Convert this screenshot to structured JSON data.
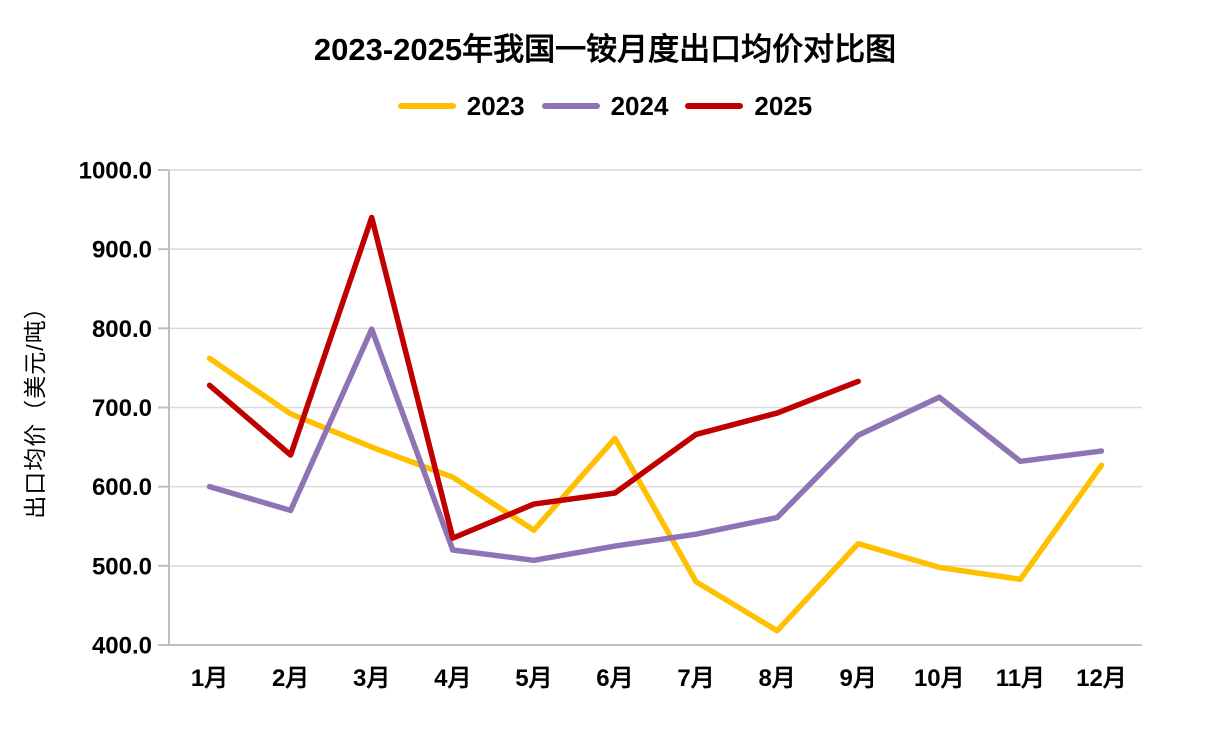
{
  "chart_data": {
    "type": "line",
    "title": "2023-2025年我国一铵月度出口均价对比图",
    "ylabel": "出口均价（美元/吨）",
    "xlabel": "",
    "categories": [
      "1月",
      "2月",
      "3月",
      "4月",
      "5月",
      "6月",
      "7月",
      "8月",
      "9月",
      "10月",
      "11月",
      "12月"
    ],
    "series": [
      {
        "name": "2023",
        "color": "#FFC000",
        "values": [
          762,
          692,
          650,
          612,
          545,
          661,
          480,
          418,
          528,
          498,
          483,
          627
        ]
      },
      {
        "name": "2024",
        "color": "#8E74B5",
        "values": [
          600,
          570,
          799,
          520,
          507,
          525,
          540,
          561,
          665,
          713,
          632,
          645
        ]
      },
      {
        "name": "2025",
        "color": "#C00000",
        "values": [
          728,
          640,
          940,
          535,
          578,
          592,
          666,
          693,
          733,
          null,
          null,
          null
        ]
      }
    ],
    "ylim": [
      400,
      1000
    ],
    "ytick_step": 100,
    "ytick_decimals": 1,
    "grid": true,
    "legend_position": "top",
    "colors": {
      "gridline": "#D9D9D9",
      "axis": "#BFBFBF",
      "text": "#000000",
      "background": "#FFFFFF"
    }
  }
}
